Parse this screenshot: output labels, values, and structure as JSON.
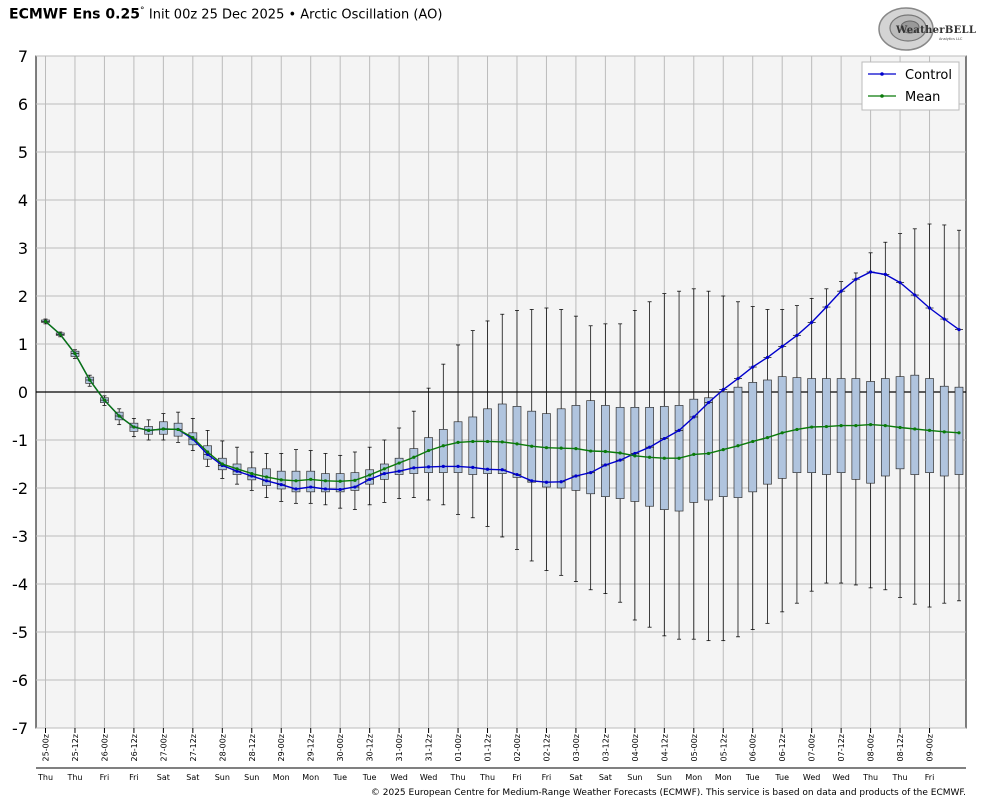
{
  "header": {
    "model": "ECMWF Ens 0.25",
    "degree_mark": "°",
    "subtitle": "Init 00z 25 Dec 2025 • Arctic Oscillation (AO)"
  },
  "logo": {
    "text": "WeatherBELL",
    "tagline": "Analytics LLC"
  },
  "footer": "© 2025 European Centre for Medium-Range Weather Forecasts (ECMWF). This service is based on data and products of the ECMWF.",
  "chart_data": {
    "type": "box",
    "title": "Init 00z 25 Dec 2025 • Arctic Oscillation (AO)",
    "ylim": [
      -7,
      7
    ],
    "y_ticks": [
      7,
      6,
      5,
      4,
      3,
      2,
      1,
      0,
      -1,
      -2,
      -3,
      -4,
      -5,
      -6,
      -7
    ],
    "grid": true,
    "legend_placement": "top-right",
    "colors": {
      "control": "#0000cc",
      "mean": "#0a7a0a",
      "box_fill": "#b0c4de",
      "plot_bg": "#f4f4f4",
      "grid": "#bbbbbb"
    },
    "x_labels": [
      "25-00z",
      "25-12z",
      "26-00z",
      "26-12z",
      "27-00z",
      "27-12z",
      "28-00z",
      "28-12z",
      "29-00z",
      "29-12z",
      "30-00z",
      "30-12z",
      "31-00z",
      "31-12z",
      "01-00z",
      "01-12z",
      "02-00z",
      "02-12z",
      "03-00z",
      "03-12z",
      "04-00z",
      "04-12z",
      "05-00z",
      "05-12z",
      "06-00z",
      "06-12z",
      "07-00z",
      "07-12z",
      "08-00z",
      "08-12z",
      "09-00z"
    ],
    "x_days": [
      "Thu",
      "Thu",
      "Fri",
      "Fri",
      "Sat",
      "Sat",
      "Sun",
      "Sun",
      "Mon",
      "Mon",
      "Tue",
      "Tue",
      "Wed",
      "Wed",
      "Thu",
      "Thu",
      "Fri",
      "Fri",
      "Sat",
      "Sat",
      "Sun",
      "Sun",
      "Mon",
      "Mon",
      "Tue",
      "Tue",
      "Wed",
      "Wed",
      "Thu",
      "Thu",
      "Fri"
    ],
    "series": [
      {
        "name": "Control",
        "values": [
          1.47,
          1.2,
          0.8,
          0.25,
          -0.17,
          -0.5,
          -0.73,
          -0.8,
          -0.77,
          -0.78,
          -0.98,
          -1.3,
          -1.53,
          -1.65,
          -1.75,
          -1.85,
          -1.93,
          -2.02,
          -1.98,
          -2.02,
          -2.03,
          -1.98,
          -1.82,
          -1.7,
          -1.65,
          -1.58,
          -1.56,
          -1.55,
          -1.55,
          -1.57,
          -1.61,
          -1.62,
          -1.72,
          -1.85,
          -1.88,
          -1.87,
          -1.75,
          -1.68,
          -1.52,
          -1.42,
          -1.28,
          -1.15,
          -0.97,
          -0.8,
          -0.52,
          -0.22,
          0.05,
          0.28,
          0.52,
          0.72,
          0.95,
          1.18,
          1.45,
          1.77,
          2.1,
          2.35,
          2.5,
          2.45,
          2.28,
          2.02,
          1.75,
          1.52,
          1.3
        ]
      },
      {
        "name": "Mean",
        "values": [
          1.47,
          1.2,
          0.8,
          0.25,
          -0.17,
          -0.5,
          -0.73,
          -0.8,
          -0.77,
          -0.78,
          -0.95,
          -1.25,
          -1.5,
          -1.6,
          -1.7,
          -1.77,
          -1.83,
          -1.85,
          -1.82,
          -1.85,
          -1.86,
          -1.84,
          -1.73,
          -1.6,
          -1.48,
          -1.36,
          -1.22,
          -1.12,
          -1.05,
          -1.03,
          -1.03,
          -1.04,
          -1.08,
          -1.13,
          -1.16,
          -1.17,
          -1.18,
          -1.23,
          -1.24,
          -1.27,
          -1.33,
          -1.36,
          -1.38,
          -1.38,
          -1.3,
          -1.28,
          -1.2,
          -1.12,
          -1.03,
          -0.95,
          -0.85,
          -0.78,
          -0.73,
          -0.72,
          -0.7,
          -0.7,
          -0.68,
          -0.7,
          -0.74,
          -0.77,
          -0.8,
          -0.83,
          -0.85
        ]
      }
    ],
    "box_stats": [
      [
        1.52,
        1.5,
        1.47,
        1.45,
        1.42
      ],
      [
        1.25,
        1.23,
        1.2,
        1.18,
        1.15
      ],
      [
        0.88,
        0.85,
        0.8,
        0.74,
        0.7
      ],
      [
        0.35,
        0.31,
        0.25,
        0.18,
        0.12
      ],
      [
        -0.08,
        -0.12,
        -0.17,
        -0.22,
        -0.28
      ],
      [
        -0.35,
        -0.42,
        -0.5,
        -0.58,
        -0.68
      ],
      [
        -0.55,
        -0.65,
        -0.73,
        -0.82,
        -0.93
      ],
      [
        -0.58,
        -0.72,
        -0.8,
        -0.88,
        -1.0
      ],
      [
        -0.45,
        -0.62,
        -0.77,
        -0.88,
        -1.0
      ],
      [
        -0.42,
        -0.65,
        -0.78,
        -0.92,
        -1.05
      ],
      [
        -0.55,
        -0.85,
        -0.98,
        -1.1,
        -1.22
      ],
      [
        -0.8,
        -1.12,
        -1.3,
        -1.4,
        -1.55
      ],
      [
        -1.02,
        -1.38,
        -1.53,
        -1.62,
        -1.8
      ],
      [
        -1.15,
        -1.5,
        -1.65,
        -1.72,
        -1.92
      ],
      [
        -1.25,
        -1.58,
        -1.75,
        -1.83,
        -2.05
      ],
      [
        -1.28,
        -1.6,
        -1.85,
        -1.95,
        -2.2
      ],
      [
        -1.28,
        -1.65,
        -1.93,
        -2.02,
        -2.28
      ],
      [
        -1.2,
        -1.65,
        -2.02,
        -2.08,
        -2.32
      ],
      [
        -1.22,
        -1.65,
        -1.98,
        -2.08,
        -2.32
      ],
      [
        -1.28,
        -1.7,
        -2.02,
        -2.08,
        -2.35
      ],
      [
        -1.32,
        -1.7,
        -2.03,
        -2.08,
        -2.42
      ],
      [
        -1.25,
        -1.68,
        -1.98,
        -2.05,
        -2.45
      ],
      [
        -1.15,
        -1.62,
        -1.82,
        -1.92,
        -2.35
      ],
      [
        -1.0,
        -1.5,
        -1.7,
        -1.82,
        -2.3
      ],
      [
        -0.75,
        -1.38,
        -1.65,
        -1.72,
        -2.22
      ],
      [
        -0.4,
        -1.18,
        -1.58,
        -1.7,
        -2.2
      ],
      [
        0.08,
        -0.95,
        -1.56,
        -1.68,
        -2.25
      ],
      [
        0.58,
        -0.78,
        -1.55,
        -1.68,
        -2.35
      ],
      [
        0.98,
        -0.62,
        -1.55,
        -1.68,
        -2.55
      ],
      [
        1.28,
        -0.52,
        -1.57,
        -1.72,
        -2.62
      ],
      [
        1.48,
        -0.35,
        -1.61,
        -1.7,
        -2.8
      ],
      [
        1.62,
        -0.25,
        -1.62,
        -1.7,
        -3.02
      ],
      [
        1.7,
        -0.3,
        -1.72,
        -1.78,
        -3.28
      ],
      [
        1.72,
        -0.4,
        -1.85,
        -1.88,
        -3.52
      ],
      [
        1.75,
        -0.45,
        -1.88,
        -1.98,
        -3.72
      ],
      [
        1.72,
        -0.35,
        -1.87,
        -2.0,
        -3.82
      ],
      [
        1.58,
        -0.28,
        -1.75,
        -2.05,
        -3.95
      ],
      [
        1.38,
        -0.18,
        -1.68,
        -2.12,
        -4.12
      ],
      [
        1.42,
        -0.28,
        -1.52,
        -2.18,
        -4.2
      ],
      [
        1.42,
        -0.32,
        -1.42,
        -2.22,
        -4.38
      ],
      [
        1.7,
        -0.32,
        -1.28,
        -2.28,
        -4.75
      ],
      [
        1.88,
        -0.32,
        -1.15,
        -2.38,
        -4.9
      ],
      [
        2.05,
        -0.3,
        -0.97,
        -2.45,
        -5.08
      ],
      [
        2.1,
        -0.28,
        -0.8,
        -2.48,
        -5.15
      ],
      [
        2.15,
        -0.15,
        -0.52,
        -2.3,
        -5.15
      ],
      [
        2.1,
        -0.12,
        -0.22,
        -2.25,
        -5.18
      ],
      [
        2.0,
        0.0,
        0.05,
        -2.18,
        -5.18
      ],
      [
        1.88,
        0.1,
        0.28,
        -2.2,
        -5.1
      ],
      [
        1.78,
        0.2,
        0.52,
        -2.08,
        -4.95
      ],
      [
        1.72,
        0.25,
        0.72,
        -1.92,
        -4.82
      ],
      [
        1.72,
        0.32,
        0.95,
        -1.8,
        -4.58
      ],
      [
        1.8,
        0.3,
        1.18,
        -1.68,
        -4.4
      ],
      [
        1.95,
        0.28,
        1.45,
        -1.68,
        -4.15
      ],
      [
        2.15,
        0.28,
        1.77,
        -1.72,
        -3.98
      ],
      [
        2.3,
        0.28,
        2.1,
        -1.68,
        -3.98
      ],
      [
        2.48,
        0.28,
        2.35,
        -1.82,
        -4.02
      ],
      [
        2.9,
        0.22,
        2.5,
        -1.9,
        -4.08
      ],
      [
        3.12,
        0.28,
        2.45,
        -1.75,
        -4.12
      ],
      [
        3.3,
        0.32,
        2.28,
        -1.6,
        -4.28
      ],
      [
        3.4,
        0.35,
        2.02,
        -1.72,
        -4.42
      ],
      [
        3.5,
        0.28,
        1.75,
        -1.68,
        -4.48
      ],
      [
        3.48,
        0.12,
        1.52,
        -1.75,
        -4.4
      ],
      [
        3.37,
        0.1,
        1.3,
        -1.72,
        -4.35
      ]
    ]
  }
}
